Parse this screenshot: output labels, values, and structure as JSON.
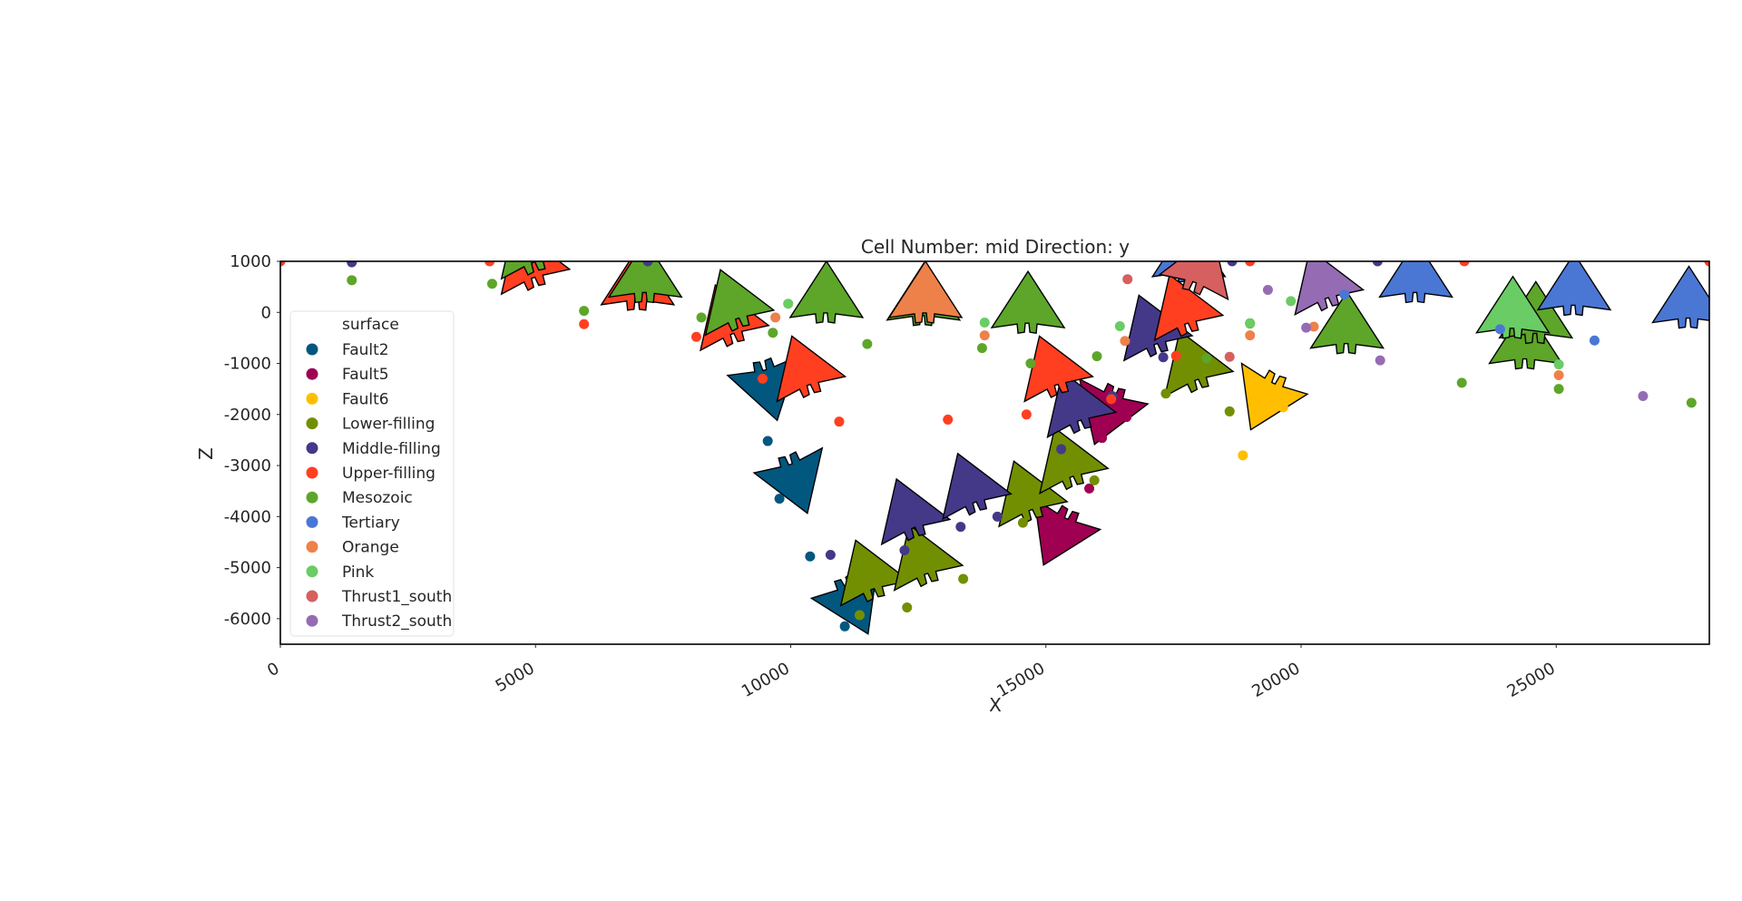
{
  "chart_data": {
    "type": "scatter",
    "title": "Cell Number: mid Direction: y",
    "xlabel": "X",
    "ylabel": "Z",
    "xlim": [
      0,
      28000
    ],
    "ylim": [
      -6500,
      1000
    ],
    "x_ticks": [
      0,
      5000,
      10000,
      15000,
      20000,
      25000
    ],
    "y_ticks": [
      1000,
      0,
      -1000,
      -2000,
      -3000,
      -4000,
      -5000,
      -6000
    ],
    "grid": false,
    "legend": {
      "title": "surface",
      "placement": "lower-left"
    },
    "series": [
      {
        "name": "Fault2",
        "color": "#02577f",
        "points": [
          [
            9100,
            -1320
          ],
          [
            9550,
            -2520
          ],
          [
            9780,
            -3650
          ],
          [
            10380,
            -4780
          ],
          [
            11060,
            -6150
          ]
        ],
        "orientations": [
          [
            9450,
            -1050,
            165
          ],
          [
            9950,
            -2900,
            160
          ],
          [
            11050,
            -5300,
            155
          ]
        ]
      },
      {
        "name": "Fault5",
        "color": "#9f0052",
        "points": [
          [
            16580,
            -2050
          ],
          [
            16100,
            -2460
          ],
          [
            15100,
            -4500
          ],
          [
            15850,
            -3450
          ]
        ],
        "orientations": [
          [
            16330,
            -1550,
            200
          ],
          [
            15420,
            -3950,
            205
          ]
        ]
      },
      {
        "name": "Fault6",
        "color": "#ffbe00",
        "points": [
          [
            18860,
            -2800
          ],
          [
            19650,
            -1860
          ]
        ],
        "orientations": [
          [
            19480,
            -1300,
            205
          ]
        ]
      },
      {
        "name": "Lower-filling",
        "color": "#728f02",
        "points": [
          [
            11350,
            -5930
          ],
          [
            12280,
            -5780
          ],
          [
            13380,
            -5220
          ],
          [
            14550,
            -4120
          ],
          [
            15950,
            -3290
          ],
          [
            17350,
            -1590
          ],
          [
            18600,
            -1940
          ],
          [
            17950,
            -920
          ]
        ],
        "orientations": [
          [
            11650,
            -5500,
            -20
          ],
          [
            12700,
            -5200,
            -20
          ],
          [
            14750,
            -3950,
            -20
          ],
          [
            15550,
            -3300,
            -20
          ],
          [
            18000,
            -1400,
            -20
          ]
        ]
      },
      {
        "name": "Middle-filling",
        "color": "#443988",
        "points": [
          [
            1400,
            980
          ],
          [
            7200,
            1000
          ],
          [
            10780,
            -4750
          ],
          [
            12230,
            -4660
          ],
          [
            13330,
            -4200
          ],
          [
            14050,
            -4000
          ],
          [
            15300,
            -2680
          ],
          [
            16300,
            -1640
          ],
          [
            17300,
            -880
          ],
          [
            18650,
            1000
          ],
          [
            21500,
            1000
          ]
        ],
        "orientations": [
          [
            12450,
            -4300,
            -20
          ],
          [
            13650,
            -3800,
            -20
          ],
          [
            15700,
            -2200,
            -20
          ],
          [
            17200,
            -700,
            -20
          ]
        ]
      },
      {
        "name": "Upper-filling",
        "color": "#ff3f20",
        "points": [
          [
            0,
            1000
          ],
          [
            4100,
            1000
          ],
          [
            5950,
            -230
          ],
          [
            8150,
            -480
          ],
          [
            9450,
            -1300
          ],
          [
            10950,
            -2140
          ],
          [
            13080,
            -2100
          ],
          [
            14620,
            -2000
          ],
          [
            16280,
            -1700
          ],
          [
            17550,
            -850
          ],
          [
            19000,
            1000
          ],
          [
            23200,
            1000
          ],
          [
            28000,
            1000
          ]
        ],
        "orientations": [
          [
            5000,
            600,
            -20
          ],
          [
            7000,
            150,
            0
          ],
          [
            8900,
            -500,
            -20
          ],
          [
            10400,
            -1500,
            -20
          ],
          [
            15250,
            -1500,
            -20
          ],
          [
            17800,
            -300,
            -20
          ]
        ]
      },
      {
        "name": "Mesozoic",
        "color": "#5da629",
        "points": [
          [
            1400,
            630
          ],
          [
            4150,
            560
          ],
          [
            5950,
            30
          ],
          [
            8250,
            -100
          ],
          [
            9650,
            -400
          ],
          [
            11500,
            -620
          ],
          [
            13750,
            -700
          ],
          [
            14700,
            -1000
          ],
          [
            16000,
            -860
          ],
          [
            18150,
            -900
          ],
          [
            23150,
            -1380
          ],
          [
            25050,
            -1500
          ],
          [
            27650,
            -1770
          ],
          [
            19000,
            -220
          ]
        ],
        "orientations": [
          [
            5000,
            900,
            -20
          ],
          [
            7150,
            300,
            0
          ],
          [
            9000,
            -200,
            -20
          ],
          [
            10700,
            -100,
            0
          ],
          [
            12600,
            -150,
            0
          ],
          [
            14650,
            -300,
            0
          ],
          [
            20900,
            -700,
            0
          ],
          [
            24400,
            -1000,
            0
          ],
          [
            24600,
            -500,
            0
          ]
        ]
      },
      {
        "name": "Tertiary",
        "color": "#4a77d4",
        "points": [
          [
            20850,
            350
          ],
          [
            23900,
            -330
          ],
          [
            25750,
            -550
          ]
        ],
        "orientations": [
          [
            17800,
            700,
            0
          ],
          [
            22250,
            300,
            0
          ],
          [
            25350,
            50,
            0
          ],
          [
            27600,
            -200,
            0
          ]
        ]
      },
      {
        "name": "Orange",
        "color": "#ee8149",
        "points": [
          [
            9700,
            -100
          ],
          [
            13800,
            -450
          ],
          [
            16550,
            -560
          ],
          [
            19000,
            -450
          ],
          [
            20250,
            -280
          ],
          [
            25050,
            -1230
          ]
        ],
        "orientations": [
          [
            12640,
            -100,
            0
          ]
        ]
      },
      {
        "name": "Pink",
        "color": "#6acc64",
        "points": [
          [
            9950,
            170
          ],
          [
            13800,
            -200
          ],
          [
            16450,
            -270
          ],
          [
            19000,
            -210
          ],
          [
            19800,
            220
          ],
          [
            25050,
            -1020
          ]
        ],
        "orientations": [
          [
            24150,
            -400,
            0
          ]
        ]
      },
      {
        "name": "Thrust1_south",
        "color": "#d65f5f",
        "points": [
          [
            16600,
            650
          ],
          [
            18600,
            -870
          ]
        ],
        "orientations": [
          [
            17900,
            500,
            20
          ]
        ]
      },
      {
        "name": "Thrust2_south",
        "color": "#956cb4",
        "points": [
          [
            19350,
            440
          ],
          [
            20100,
            -300
          ],
          [
            21550,
            -940
          ],
          [
            26700,
            -1640
          ]
        ],
        "orientations": [
          [
            20550,
            200,
            -20
          ]
        ]
      }
    ]
  }
}
